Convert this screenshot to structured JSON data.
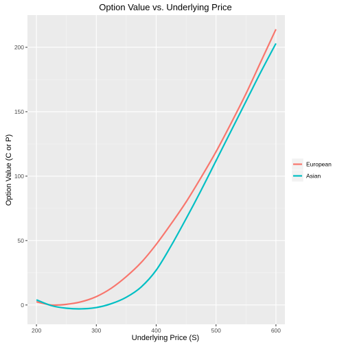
{
  "chart_data": {
    "type": "line",
    "title": "Option Value vs. Underlying Price",
    "xlabel": "Underlying Price (S)",
    "ylabel": "Option Value (C or P)",
    "xlim": [
      185,
      615
    ],
    "ylim": [
      -15,
      225
    ],
    "x_ticks": [
      200,
      300,
      400,
      500,
      600
    ],
    "y_ticks": [
      0,
      50,
      100,
      150,
      200
    ],
    "grid": true,
    "legend_position": "right",
    "series": [
      {
        "name": "European",
        "color": "#F8766D",
        "x": [
          200,
          225,
          250,
          275,
          300,
          325,
          350,
          375,
          400,
          425,
          450,
          475,
          500,
          525,
          550,
          575,
          600
        ],
        "y": [
          2.5,
          0,
          0.5,
          2.5,
          6.5,
          13,
          22,
          33,
          47,
          63,
          80,
          99,
          119,
          141,
          164,
          189,
          214
        ]
      },
      {
        "name": "Asian",
        "color": "#00BFC4",
        "x": [
          200,
          225,
          250,
          275,
          300,
          325,
          350,
          375,
          400,
          425,
          450,
          475,
          500,
          525,
          550,
          575,
          600
        ],
        "y": [
          4,
          -0.5,
          -2.5,
          -3,
          -2,
          1,
          6,
          14,
          27,
          46,
          67,
          89,
          112,
          135,
          158,
          181,
          203
        ]
      }
    ]
  }
}
